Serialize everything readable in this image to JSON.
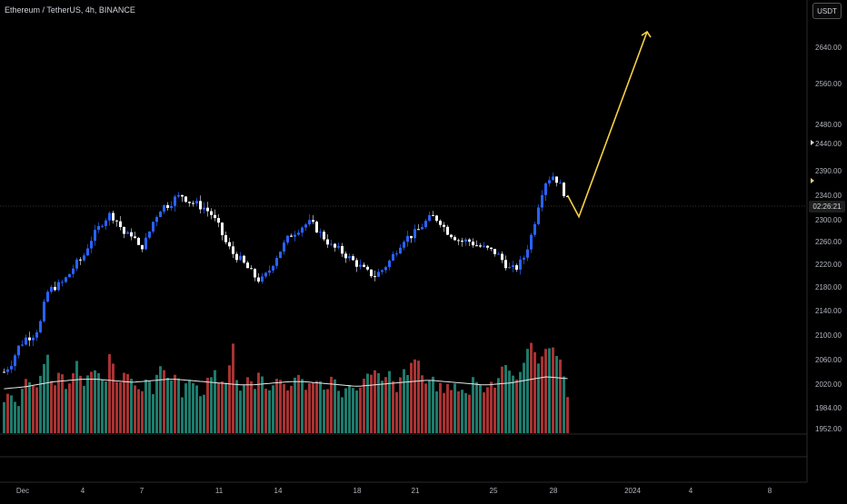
{
  "header": {
    "title": "Ethereum / TetherUS, 4h, BINANCE",
    "currency": "USDT",
    "countdown": "02:26:21"
  },
  "colors": {
    "up": "#2962ff",
    "down": "#ffffff",
    "vol_up": "#1e7a6b",
    "vol_down": "#a83232",
    "ma": "#e8e8e8",
    "arrow": "#f7d046",
    "axis_text": "#b2b5be"
  },
  "chart_data": {
    "type": "candlestick",
    "price_axis": {
      "ticks": [
        "2640.00",
        "2560.00",
        "2480.00",
        "2440.00",
        "2390.00",
        "2340.00",
        "2300.00",
        "2260.00",
        "2220.00",
        "2180.00",
        "2140.00",
        "2100.00",
        "2060.00",
        "2020.00",
        "1984.00",
        "1952.00"
      ]
    },
    "time_axis": {
      "labels": [
        "Dec",
        "4",
        "7",
        "11",
        "14",
        "18",
        "21",
        "25",
        "28",
        "2024",
        "4",
        "8"
      ]
    },
    "close_path": [
      2040,
      2055,
      2080,
      2095,
      2100,
      2115,
      2170,
      2180,
      2185,
      2200,
      2220,
      2230,
      2260,
      2280,
      2300,
      2310,
      2295,
      2270,
      2275,
      2245,
      2265,
      2300,
      2320,
      2325,
      2335,
      2340,
      2330,
      2325,
      2320,
      2310,
      2290,
      2260,
      2240,
      2230,
      2215,
      2200,
      2190,
      2205,
      2230,
      2250,
      2270,
      2280,
      2290,
      2295,
      2280,
      2265,
      2250,
      2245,
      2235,
      2225,
      2215,
      2205,
      2200,
      2210,
      2225,
      2245,
      2265,
      2270,
      2280,
      2295,
      2305,
      2300,
      2280,
      2270,
      2260,
      2262,
      2255,
      2250,
      2245,
      2240,
      2225,
      2210,
      2215,
      2235,
      2275,
      2330,
      2370,
      2380,
      2360,
      2330
    ],
    "volume_path": [
      1998,
      2008,
      1995,
      2020,
      2012,
      2030,
      2065,
      2010,
      2045,
      2002,
      2060,
      2015,
      2040,
      2035,
      2020,
      2070,
      2015,
      2050,
      2030,
      2005,
      2040,
      2010,
      2055,
      2020,
      2045,
      2005,
      2030,
      2010,
      1998,
      2040,
      2028,
      2012,
      2090,
      2000,
      2030,
      2015,
      2045,
      2010,
      2020,
      2035,
      2005,
      2045,
      2020,
      2010,
      2030,
      2010,
      2035,
      2000,
      2020,
      2010,
      2025,
      2030,
      2050,
      2020,
      2035,
      2005,
      2040,
      2045,
      2060,
      2020,
      2030,
      2012,
      2015,
      2010,
      2020,
      2000,
      2035,
      2010,
      2020,
      2025,
      2055,
      2045,
      2015,
      2070,
      2080,
      2060,
      2085,
      2070,
      2065,
      2000
    ],
    "ma_path": [
      2013,
      2014,
      2015,
      2016,
      2018,
      2020,
      2022,
      2024,
      2025,
      2026,
      2027,
      2028,
      2028,
      2028,
      2027,
      2026,
      2025,
      2024,
      2023,
      2024,
      2025,
      2026,
      2027,
      2028,
      2028,
      2027,
      2026,
      2025,
      2024,
      2023,
      2022,
      2021,
      2020,
      2019,
      2019,
      2019,
      2020,
      2021,
      2022,
      2023,
      2024,
      2024,
      2024,
      2023,
      2022,
      2021,
      2020,
      2019,
      2018,
      2017,
      2017,
      2018,
      2019,
      2020,
      2021,
      2022,
      2023,
      2024,
      2025,
      2026,
      2026,
      2025,
      2024,
      2023,
      2022,
      2021,
      2020,
      2019,
      2019,
      2020,
      2021,
      2022,
      2024,
      2026,
      2028,
      2030,
      2032,
      2031,
      2030,
      2029
    ],
    "projection": {
      "from_price": 2305,
      "to_price": 2690
    }
  }
}
